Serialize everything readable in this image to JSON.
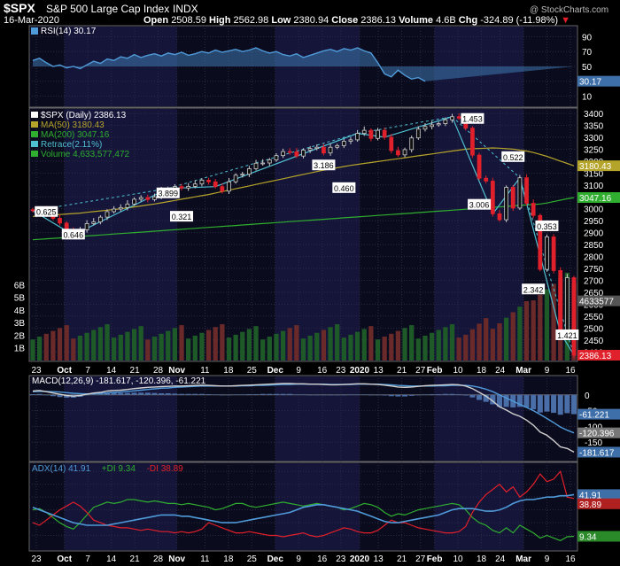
{
  "header": {
    "symbol": "$SPX",
    "name": "S&P 500 Large Cap Index",
    "exchange": "INDX",
    "date": "16-Mar-2020",
    "watermark": "@ StockCharts.com",
    "open_label": "Open",
    "open": "2508.59",
    "high_label": "High",
    "high": "2562.98",
    "low_label": "Low",
    "low": "2380.94",
    "close_label": "Close",
    "close": "2386.13",
    "volume_label": "Volume",
    "volume": "4.6B",
    "chg_label": "Chg",
    "chg": "-324.89 (-11.98%)",
    "chg_arrow": "▼"
  },
  "colors": {
    "background": "#000000",
    "plot_bg": "#0b0b1e",
    "band": "#15153a",
    "grid": "#2a2a44",
    "rsi_line": "#4f9ad8",
    "rsi_fill": "#3e78ae",
    "ma50": "#b5a42a",
    "ma200": "#2fae2f",
    "retrace": "#4fc0d0",
    "up_candle": "#111111",
    "down_candle": "#e0202a",
    "volume_up": "#1e5a28",
    "volume_down": "#6a2a2a",
    "macd_line": "#d0d0d0",
    "macd_signal": "#4f9ad8",
    "macd_hist": "#4a6fa8",
    "adx_line": "#4f9ad8",
    "plus_di": "#2fae2f",
    "minus_di": "#e0202a"
  },
  "chart_data": [
    {
      "type": "line",
      "id": "rsi",
      "legend": "RSI(14) 30.17",
      "value_label": "30.17",
      "ylim": [
        0,
        100
      ],
      "y_ticks": [
        10,
        30,
        50,
        70,
        90
      ],
      "values": [
        58,
        61,
        55,
        50,
        52,
        48,
        50,
        47,
        52,
        57,
        54,
        60,
        58,
        63,
        61,
        66,
        62,
        65,
        67,
        64,
        68,
        66,
        69,
        65,
        67,
        70,
        68,
        72,
        69,
        71,
        73,
        70,
        72,
        75,
        71,
        68,
        70,
        66,
        64,
        67,
        62,
        65,
        68,
        71,
        73,
        70,
        74,
        72,
        75,
        71,
        68,
        55,
        40,
        36,
        45,
        38,
        33,
        35,
        30
      ]
    },
    {
      "type": "candlestick",
      "id": "price",
      "legend": [
        {
          "name": "$SPX (Daily) 2386.13",
          "color": "#ffffff"
        },
        {
          "name": "MA(50) 3180.43",
          "color": "#b5a42a"
        },
        {
          "name": "MA(200) 3047.16",
          "color": "#2fae2f"
        },
        {
          "name": "Retrace(2.11%)",
          "color": "#4fc0d0"
        },
        {
          "name": "Volume 4,633,577,472",
          "color": "#2fae2f"
        }
      ],
      "ylim": [
        2375,
        3400
      ],
      "y_ticks": [
        2400,
        2450,
        2500,
        2550,
        2600,
        2650,
        2700,
        2750,
        2800,
        2850,
        2900,
        2950,
        3000,
        3050,
        3100,
        3150,
        3200,
        3250,
        3300,
        3350,
        3400
      ],
      "volume_ticks": [
        "1B",
        "2B",
        "3B",
        "4B",
        "5B",
        "6B"
      ],
      "volume_ylim": [
        0,
        9
      ],
      "x_ticks": [
        "23",
        "Oct",
        "7",
        "14",
        "21",
        "28",
        "Nov",
        "11",
        "18",
        "25",
        "Dec",
        "9",
        "16",
        "23",
        "2020",
        "13",
        "21",
        "27",
        "Feb",
        "10",
        "18",
        "24",
        "Mar",
        "9",
        "16"
      ],
      "value_badges": [
        {
          "label": "3180.43",
          "value": 3180.43,
          "color": "#b5a42a"
        },
        {
          "label": "3047.16",
          "value": 3047.16,
          "color": "#2fae2f"
        },
        {
          "label": "4633577",
          "value": 2614,
          "color": "#555555"
        },
        {
          "label": "2386.13",
          "value": 2386.13,
          "color": "#e0202a"
        }
      ],
      "retrace_labels": [
        {
          "label": "0.625",
          "i": 2,
          "y": 2985
        },
        {
          "label": "0.646",
          "i": 6,
          "y": 2890
        },
        {
          "label": "3.899",
          "i": 20,
          "y": 3063
        },
        {
          "label": "0.321",
          "i": 22,
          "y": 2965
        },
        {
          "label": "3.186",
          "i": 43,
          "y": 3180
        },
        {
          "label": "0.460",
          "i": 46,
          "y": 3085
        },
        {
          "label": "1.453",
          "i": 65,
          "y": 3375
        },
        {
          "label": "0.522",
          "i": 71,
          "y": 3215
        },
        {
          "label": "3.006",
          "i": 66,
          "y": 3015
        },
        {
          "label": "0.353",
          "i": 76,
          "y": 2925
        },
        {
          "label": "2.342",
          "i": 74,
          "y": 2660
        },
        {
          "label": "1.421",
          "i": 79,
          "y": 2468
        }
      ],
      "close": [
        2992,
        3000,
        2978,
        2960,
        2940,
        2912,
        2890,
        2912,
        2938,
        2945,
        2965,
        2988,
        2999,
        3005,
        3020,
        3040,
        3047,
        3039,
        3050,
        3076,
        3085,
        3093,
        3087,
        3094,
        3104,
        3120,
        3113,
        3093,
        3074,
        3113,
        3141,
        3145,
        3168,
        3191,
        3192,
        3205,
        3223,
        3240,
        3239,
        3221,
        3246,
        3253,
        3258,
        3234,
        3258,
        3265,
        3283,
        3289,
        3316,
        3329,
        3295,
        3329,
        3300,
        3244,
        3226,
        3248,
        3297,
        3334,
        3345,
        3352,
        3357,
        3373,
        3386,
        3380,
        3338,
        3225,
        3128,
        3116,
        2979,
        2954,
        3090,
        3003,
        3130,
        3023,
        2972,
        2746,
        2882,
        2741,
        2480,
        2711,
        2386
      ],
      "ma50": [
        2968,
        2970,
        2972,
        2974,
        2976,
        2978,
        2980,
        2982,
        2985,
        2988,
        2991,
        2994,
        2997,
        3000,
        3004,
        3008,
        3012,
        3016,
        3020,
        3025,
        3030,
        3035,
        3040,
        3045,
        3050,
        3055,
        3060,
        3066,
        3072,
        3078,
        3084,
        3090,
        3096,
        3102,
        3108,
        3114,
        3120,
        3126,
        3132,
        3138,
        3144,
        3150,
        3156,
        3162,
        3167,
        3172,
        3177,
        3182,
        3186,
        3190,
        3194,
        3198,
        3202,
        3206,
        3210,
        3214,
        3218,
        3222,
        3226,
        3230,
        3234,
        3238,
        3242,
        3246,
        3250,
        3252,
        3253,
        3254,
        3255,
        3254,
        3252,
        3250,
        3246,
        3242,
        3236,
        3228,
        3220,
        3210,
        3200,
        3190,
        3180
      ],
      "ma200": [
        2870,
        2872,
        2874,
        2876,
        2878,
        2880,
        2882,
        2884,
        2886,
        2888,
        2890,
        2892,
        2894,
        2896,
        2898,
        2900,
        2902,
        2904,
        2906,
        2908,
        2910,
        2912,
        2914,
        2916,
        2918,
        2920,
        2922,
        2924,
        2926,
        2928,
        2930,
        2932,
        2934,
        2936,
        2938,
        2940,
        2942,
        2944,
        2946,
        2948,
        2950,
        2952,
        2954,
        2956,
        2958,
        2960,
        2962,
        2964,
        2966,
        2968,
        2970,
        2972,
        2974,
        2976,
        2978,
        2980,
        2982,
        2984,
        2986,
        2988,
        2990,
        2992,
        2994,
        2996,
        2998,
        3000,
        3002,
        3004,
        3006,
        3008,
        3010,
        3012,
        3014,
        3016,
        3018,
        3020,
        3024,
        3030,
        3036,
        3042,
        3047
      ]
    },
    {
      "type": "line",
      "id": "macd",
      "legend": "MACD(12,26,9) -181.617, -120.396, -61.221",
      "value_labels": [
        "-61.221",
        "-120.396",
        "-181.617"
      ],
      "ylim": [
        -200,
        50
      ],
      "y_ticks": [
        -150,
        -100,
        -50,
        0
      ],
      "macd": [
        12,
        14,
        10,
        6,
        2,
        -2,
        -4,
        -2,
        2,
        6,
        8,
        12,
        14,
        15,
        17,
        20,
        22,
        24,
        25,
        26,
        27,
        28,
        28,
        29,
        30,
        31,
        30,
        29,
        28,
        28,
        29,
        30,
        31,
        32,
        33,
        34,
        35,
        36,
        36,
        35,
        35,
        34,
        34,
        33,
        32,
        32,
        33,
        34,
        35,
        35,
        34,
        33,
        31,
        28,
        25,
        24,
        25,
        27,
        29,
        30,
        31,
        32,
        33,
        32,
        28,
        20,
        8,
        -4,
        -20,
        -38,
        -48,
        -60,
        -68,
        -80,
        -96,
        -118,
        -128,
        -145,
        -165,
        -170,
        -181.6
      ],
      "signal": [
        10,
        11,
        11,
        10,
        9,
        7,
        5,
        4,
        3,
        4,
        5,
        6,
        8,
        9,
        11,
        13,
        15,
        17,
        19,
        21,
        22,
        24,
        25,
        26,
        27,
        28,
        28,
        28,
        28,
        28,
        28,
        29,
        29,
        30,
        30,
        31,
        32,
        33,
        33,
        34,
        34,
        34,
        34,
        34,
        33,
        33,
        33,
        33,
        34,
        34,
        34,
        34,
        33,
        32,
        30,
        29,
        28,
        28,
        28,
        28,
        29,
        29,
        30,
        30,
        30,
        28,
        24,
        18,
        10,
        0,
        -10,
        -20,
        -30,
        -40,
        -50,
        -62,
        -75,
        -88,
        -102,
        -112,
        -120.4
      ]
    },
    {
      "type": "line",
      "id": "adx",
      "legend_parts": [
        {
          "text": "ADX(14) 41.91",
          "color": "#4f9ad8"
        },
        {
          "text": "+DI 9.34",
          "color": "#2fae2f"
        },
        {
          "text": "-DI 38.89",
          "color": "#e0202a"
        }
      ],
      "value_labels": [
        "41.91",
        "38.89",
        "9.34"
      ],
      "ylim": [
        0,
        65
      ],
      "y_ticks": [
        10,
        20,
        30,
        40,
        50,
        60
      ],
      "adx": [
        32,
        30,
        28,
        26,
        24,
        22,
        20,
        19,
        18,
        18,
        18,
        18,
        19,
        20,
        21,
        22,
        23,
        24,
        25,
        26,
        26,
        26,
        25,
        25,
        24,
        23,
        22,
        21,
        20,
        20,
        20,
        21,
        22,
        23,
        24,
        25,
        26,
        27,
        28,
        30,
        32,
        33,
        34,
        34,
        33,
        32,
        31,
        30,
        29,
        27,
        25,
        23,
        21,
        20,
        20,
        21,
        22,
        23,
        24,
        25,
        26,
        28,
        30,
        31,
        31,
        31,
        30,
        29,
        29,
        30,
        32,
        35,
        37,
        38,
        38,
        39,
        40,
        40,
        41,
        41,
        41.9
      ],
      "plus_di": [
        30,
        31,
        28,
        24,
        20,
        17,
        15,
        20,
        26,
        32,
        34,
        36,
        35,
        36,
        38,
        38,
        37,
        36,
        37,
        36,
        35,
        35,
        34,
        35,
        34,
        33,
        32,
        30,
        31,
        33,
        35,
        35,
        33,
        32,
        33,
        34,
        35,
        36,
        35,
        34,
        33,
        34,
        35,
        34,
        33,
        32,
        30,
        31,
        33,
        35,
        34,
        32,
        28,
        25,
        27,
        26,
        28,
        30,
        31,
        32,
        33,
        34,
        35,
        34,
        30,
        24,
        20,
        18,
        14,
        12,
        16,
        12,
        18,
        15,
        12,
        8,
        10,
        8,
        6,
        9,
        9.34
      ],
      "minus_di": [
        20,
        18,
        22,
        26,
        30,
        33,
        36,
        33,
        28,
        22,
        20,
        18,
        17,
        16,
        16,
        15,
        14,
        15,
        14,
        13,
        13,
        12,
        13,
        12,
        13,
        15,
        20,
        18,
        16,
        14,
        12,
        12,
        13,
        12,
        11,
        10,
        10,
        9,
        10,
        11,
        12,
        10,
        9,
        10,
        12,
        14,
        16,
        15,
        13,
        12,
        12,
        14,
        18,
        22,
        20,
        20,
        18,
        16,
        15,
        14,
        13,
        12,
        12,
        13,
        17,
        28,
        36,
        42,
        46,
        50,
        44,
        48,
        40,
        44,
        50,
        58,
        52,
        54,
        60,
        40,
        38.89
      ]
    }
  ]
}
